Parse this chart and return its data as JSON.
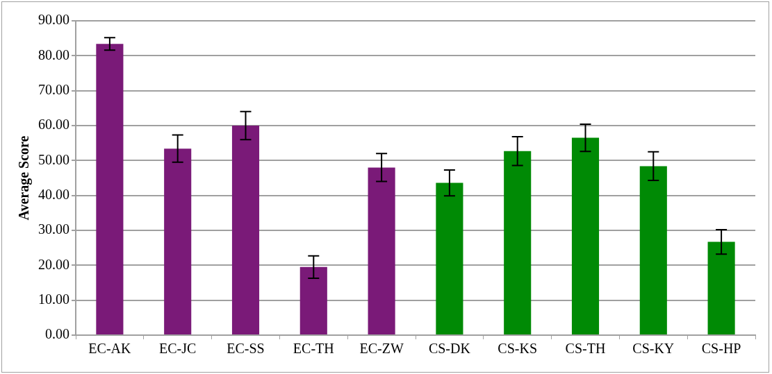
{
  "chart_data": {
    "type": "bar",
    "ylabel": "Average Score",
    "categories": [
      "EC-AK",
      "EC-JC",
      "EC-SS",
      "EC-TH",
      "EC-ZW",
      "CS-DK",
      "CS-KS",
      "CS-TH",
      "CS-KY",
      "CS-HP"
    ],
    "values": [
      83.4,
      53.4,
      60.0,
      19.5,
      48.0,
      43.6,
      52.7,
      56.5,
      48.4,
      26.7
    ],
    "errors": [
      1.8,
      3.9,
      4.0,
      3.2,
      4.0,
      3.7,
      4.1,
      3.9,
      4.1,
      3.5
    ],
    "colors": [
      "#7a1a78",
      "#7a1a78",
      "#7a1a78",
      "#7a1a78",
      "#7a1a78",
      "#008a05",
      "#008a05",
      "#008a05",
      "#008a05",
      "#008a05"
    ],
    "ylim": [
      0,
      90
    ],
    "yticks": [
      {
        "value": 0,
        "label": "0.00"
      },
      {
        "value": 10,
        "label": "10.00"
      },
      {
        "value": 20,
        "label": "20.00"
      },
      {
        "value": 30,
        "label": "30.00"
      },
      {
        "value": 40,
        "label": "40.00"
      },
      {
        "value": 50,
        "label": "50.00"
      },
      {
        "value": 60,
        "label": "60.00"
      },
      {
        "value": 70,
        "label": "70.00"
      },
      {
        "value": 80,
        "label": "80.00"
      },
      {
        "value": 90,
        "label": "90.00"
      }
    ],
    "grid": "y"
  }
}
